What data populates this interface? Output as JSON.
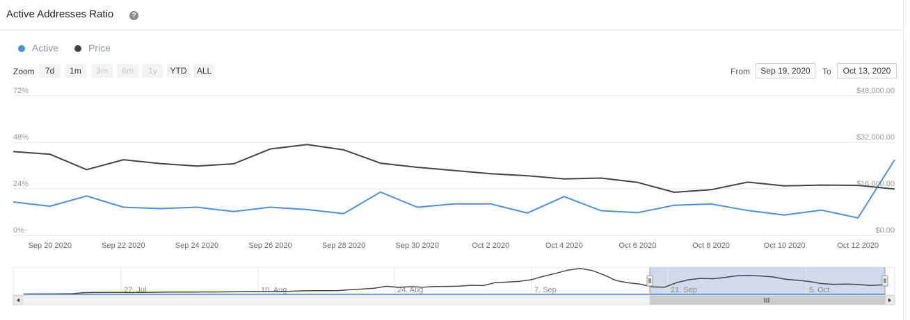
{
  "header": {
    "title": "Active Addresses Ratio",
    "help_icon": "?"
  },
  "legend": [
    {
      "name": "Active",
      "color": "#4a90d9"
    },
    {
      "name": "Price",
      "color": "#434348"
    }
  ],
  "zoom": {
    "label": "Zoom",
    "buttons": [
      {
        "label": "7d",
        "enabled": true
      },
      {
        "label": "1m",
        "enabled": true
      },
      {
        "label": "3m",
        "enabled": false
      },
      {
        "label": "6m",
        "enabled": false
      },
      {
        "label": "1y",
        "enabled": false
      },
      {
        "label": "YTD",
        "enabled": true
      },
      {
        "label": "ALL",
        "enabled": true
      }
    ]
  },
  "range": {
    "from_label": "From",
    "from_value": "Sep 19, 2020",
    "to_label": "To",
    "to_value": "Oct 13, 2020"
  },
  "chart_data": {
    "type": "line",
    "x": [
      19,
      20,
      21,
      22,
      23,
      24,
      25,
      26,
      27,
      28,
      29,
      30,
      31,
      32,
      33,
      34,
      35,
      36,
      37,
      38,
      39,
      40,
      41,
      42,
      43
    ],
    "x_tick_labels": [
      "Sep 20 2020",
      "Sep 22 2020",
      "Sep 24 2020",
      "Sep 26 2020",
      "Sep 28 2020",
      "Sep 30 2020",
      "Oct 2 2020",
      "Oct 4 2020",
      "Oct 6 2020",
      "Oct 8 2020",
      "Oct 10 2020",
      "Oct 12 2020"
    ],
    "x_tick_values": [
      20,
      22,
      24,
      26,
      28,
      30,
      32,
      34,
      36,
      38,
      40,
      42
    ],
    "y_left": {
      "ticks": [
        "0%",
        "24%",
        "48%",
        "72%"
      ],
      "range": [
        0,
        72
      ]
    },
    "y_right": {
      "ticks": [
        "$0.00",
        "$16,000.00",
        "$32,000.00",
        "$48,000.00"
      ],
      "range": [
        0,
        48000
      ]
    },
    "series": [
      {
        "name": "Active",
        "axis": "left",
        "color": "#4a90d9",
        "values": [
          17.2,
          15,
          20.3,
          14.5,
          13.8,
          14.5,
          12.3,
          14.5,
          13.3,
          11.2,
          22.3,
          14.5,
          16.2,
          16.2,
          11.5,
          20,
          12.7,
          11.7,
          15.5,
          16.2,
          12.8,
          10.5,
          13,
          9,
          39
        ]
      },
      {
        "name": "Price",
        "axis": "right",
        "color": "#434348",
        "values": [
          28800,
          27900,
          22600,
          26000,
          24700,
          23800,
          24600,
          29700,
          31200,
          29400,
          24800,
          23400,
          22300,
          21200,
          20500,
          19400,
          19700,
          18200,
          14800,
          15700,
          18300,
          17000,
          17300,
          17200,
          15900
        ]
      }
    ],
    "navigator": {
      "tick_labels": [
        "27. Jul",
        "10. Aug",
        "24. Aug",
        "7. Sep",
        "21. Sep",
        "5. Oct"
      ],
      "price_values": [
        0.2,
        0.3,
        0.3,
        0.4,
        0.5,
        1.2,
        1.3,
        1.4,
        1.4,
        1.3,
        1.4,
        1.5,
        1.6,
        1.6,
        1.6,
        1.7,
        1.7,
        1.8,
        1.9,
        2,
        1.9,
        2,
        2.2,
        2.5,
        2.6,
        2.6,
        2.7,
        3.3,
        3.8,
        4.4,
        5.8,
        5,
        5.5,
        5.1,
        5.6,
        5.7,
        5.9,
        6.5,
        6.3,
        8.4,
        8.8,
        9.3,
        10.6,
        13,
        15.1,
        17.4,
        18.7,
        17.2,
        13.9,
        9.9,
        8.3,
        7.3,
        5.4,
        5.1,
        8.4,
        10.5,
        11.5,
        11.2,
        12.2,
        13.4,
        13.6,
        13.2,
        12.5,
        10.9,
        10.1,
        9.2,
        7.7,
        7.2,
        7.4,
        7.1,
        6.4,
        6.8
      ]
    }
  }
}
